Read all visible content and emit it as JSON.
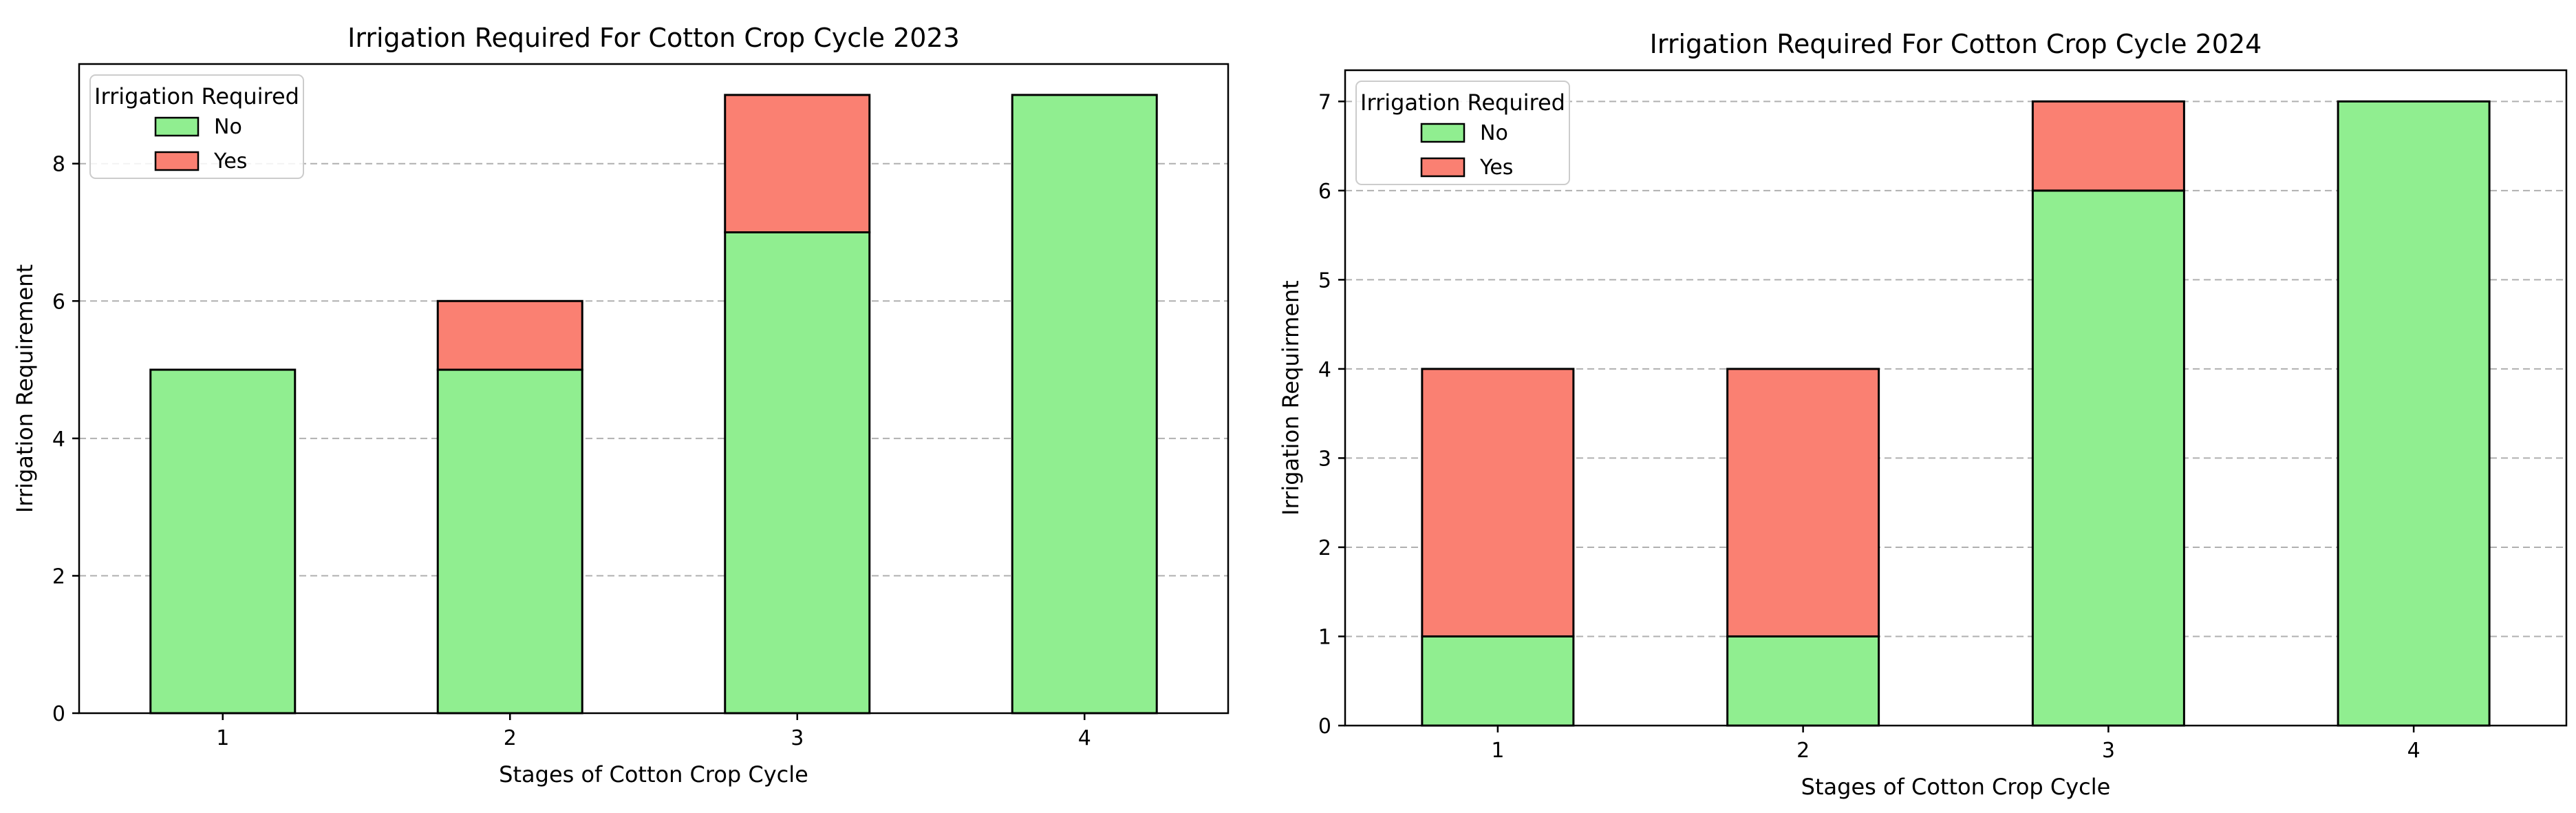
{
  "legend_title": "Irrigation Required",
  "colors": {
    "No": "#90ee90",
    "Yes": "#fa8072",
    "edge": "#000000",
    "grid": "#b0b0b0"
  },
  "chart_data": [
    {
      "type": "bar",
      "stacked": true,
      "title": "Irrigation Required For Cotton Crop Cycle 2023",
      "xlabel": "Stages of Cotton Crop Cycle",
      "ylabel": "Irrigation Requirement",
      "categories": [
        "1",
        "2",
        "3",
        "4"
      ],
      "series": [
        {
          "name": "No",
          "values": [
            5,
            5,
            7,
            9
          ]
        },
        {
          "name": "Yes",
          "values": [
            0,
            1,
            2,
            0
          ]
        }
      ],
      "ylim": [
        0,
        9.45
      ],
      "yticks": [
        0,
        2,
        4,
        6,
        8
      ],
      "grid": "y-dashed",
      "legend_position": "upper left"
    },
    {
      "type": "bar",
      "stacked": true,
      "title": "Irrigation Required For Cotton Crop Cycle 2024",
      "xlabel": "Stages of Cotton Crop Cycle",
      "ylabel": "Irrigation Requirment",
      "categories": [
        "1",
        "2",
        "3",
        "4"
      ],
      "series": [
        {
          "name": "No",
          "values": [
            1,
            1,
            6,
            7
          ]
        },
        {
          "name": "Yes",
          "values": [
            3,
            3,
            1,
            0
          ]
        }
      ],
      "ylim": [
        0,
        7.35
      ],
      "yticks": [
        0,
        1,
        2,
        3,
        4,
        5,
        6,
        7
      ],
      "grid": "y-dashed",
      "legend_position": "upper left"
    }
  ]
}
